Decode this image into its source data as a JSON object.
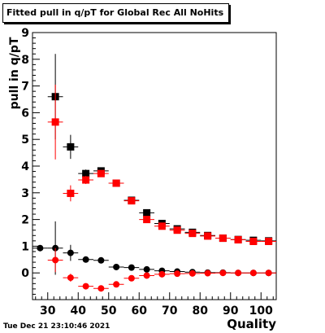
{
  "title": "Fitted pull in q/pT for Global Rec All NoHits",
  "timestamp": "Tue Dec 21 23:10:46 2021",
  "chart_data": {
    "type": "scatter",
    "title": "Fitted pull in q/pT for Global Rec All NoHits",
    "xlabel": "Quality",
    "ylabel": "pull in q/pT",
    "xlim": [
      25,
      105
    ],
    "ylim": [
      -1,
      9
    ],
    "xticks": [
      30,
      40,
      50,
      60,
      70,
      80,
      90,
      100
    ],
    "yticks": [
      0,
      1,
      2,
      3,
      4,
      5,
      6,
      7,
      8,
      9
    ],
    "grid": false,
    "series": [
      {
        "color": "#000000",
        "marker": "square",
        "points": [
          {
            "x": 32.5,
            "y": 6.6,
            "yerr": 1.6,
            "xerr": 2.5
          },
          {
            "x": 37.5,
            "y": 4.72,
            "yerr": 0.45,
            "xerr": 2.5
          },
          {
            "x": 42.5,
            "y": 3.72,
            "yerr": 0.15,
            "xerr": 2.5
          },
          {
            "x": 47.5,
            "y": 3.82,
            "yerr": 0.12,
            "xerr": 2.5
          },
          {
            "x": 52.5,
            "y": 3.36,
            "yerr": 0.06,
            "xerr": 2.5
          },
          {
            "x": 57.5,
            "y": 2.72,
            "yerr": 0.05,
            "xerr": 2.5
          },
          {
            "x": 62.5,
            "y": 2.25,
            "yerr": 0.05,
            "xerr": 2.5
          },
          {
            "x": 67.5,
            "y": 1.85,
            "yerr": 0.04,
            "xerr": 2.5
          },
          {
            "x": 72.5,
            "y": 1.65,
            "yerr": 0.04,
            "xerr": 2.5
          },
          {
            "x": 77.5,
            "y": 1.52,
            "yerr": 0.03,
            "xerr": 2.5
          },
          {
            "x": 82.5,
            "y": 1.4,
            "yerr": 0.03,
            "xerr": 2.5
          },
          {
            "x": 87.5,
            "y": 1.3,
            "yerr": 0.03,
            "xerr": 2.5
          },
          {
            "x": 92.5,
            "y": 1.25,
            "yerr": 0.03,
            "xerr": 2.5
          },
          {
            "x": 97.5,
            "y": 1.22,
            "yerr": 0.03,
            "xerr": 2.5
          },
          {
            "x": 102.5,
            "y": 1.2,
            "yerr": 0.03,
            "xerr": 2.5
          }
        ]
      },
      {
        "color": "#ff0000",
        "marker": "square",
        "points": [
          {
            "x": 32.5,
            "y": 5.65,
            "yerr": 1.4,
            "xerr": 2.5
          },
          {
            "x": 37.5,
            "y": 2.98,
            "yerr": 0.3,
            "xerr": 2.5
          },
          {
            "x": 42.5,
            "y": 3.48,
            "yerr": 0.15,
            "xerr": 2.5
          },
          {
            "x": 47.5,
            "y": 3.72,
            "yerr": 0.1,
            "xerr": 2.5
          },
          {
            "x": 52.5,
            "y": 3.36,
            "yerr": 0.06,
            "xerr": 2.5
          },
          {
            "x": 57.5,
            "y": 2.7,
            "yerr": 0.05,
            "xerr": 2.5
          },
          {
            "x": 62.5,
            "y": 2.0,
            "yerr": 0.05,
            "xerr": 2.5
          },
          {
            "x": 67.5,
            "y": 1.75,
            "yerr": 0.04,
            "xerr": 2.5
          },
          {
            "x": 72.5,
            "y": 1.6,
            "yerr": 0.04,
            "xerr": 2.5
          },
          {
            "x": 77.5,
            "y": 1.48,
            "yerr": 0.03,
            "xerr": 2.5
          },
          {
            "x": 82.5,
            "y": 1.38,
            "yerr": 0.03,
            "xerr": 2.5
          },
          {
            "x": 87.5,
            "y": 1.3,
            "yerr": 0.03,
            "xerr": 2.5
          },
          {
            "x": 92.5,
            "y": 1.24,
            "yerr": 0.03,
            "xerr": 2.5
          },
          {
            "x": 97.5,
            "y": 1.18,
            "yerr": 0.03,
            "xerr": 2.5
          },
          {
            "x": 102.5,
            "y": 1.18,
            "yerr": 0.03,
            "xerr": 2.5
          }
        ]
      },
      {
        "color": "#000000",
        "marker": "circle",
        "points": [
          {
            "x": 27.5,
            "y": 0.93,
            "yerr": 0.05,
            "xerr": 2.5
          },
          {
            "x": 32.5,
            "y": 0.93,
            "yerr": 1.0,
            "xerr": 2.5
          },
          {
            "x": 37.5,
            "y": 0.75,
            "yerr": 0.3,
            "xerr": 2.5
          },
          {
            "x": 42.5,
            "y": 0.5,
            "yerr": 0.08,
            "xerr": 2.5
          },
          {
            "x": 47.5,
            "y": 0.47,
            "yerr": 0.05,
            "xerr": 2.5
          },
          {
            "x": 52.5,
            "y": 0.22,
            "yerr": 0.04,
            "xerr": 2.5
          },
          {
            "x": 57.5,
            "y": 0.2,
            "yerr": 0.03,
            "xerr": 2.5
          },
          {
            "x": 62.5,
            "y": 0.13,
            "yerr": 0.03,
            "xerr": 2.5
          },
          {
            "x": 67.5,
            "y": 0.08,
            "yerr": 0.02,
            "xerr": 2.5
          },
          {
            "x": 72.5,
            "y": 0.05,
            "yerr": 0.02,
            "xerr": 2.5
          },
          {
            "x": 77.5,
            "y": 0.03,
            "yerr": 0.02,
            "xerr": 2.5
          },
          {
            "x": 82.5,
            "y": 0.01,
            "yerr": 0.02,
            "xerr": 2.5
          },
          {
            "x": 87.5,
            "y": 0.01,
            "yerr": 0.02,
            "xerr": 2.5
          },
          {
            "x": 92.5,
            "y": 0.0,
            "yerr": 0.02,
            "xerr": 2.5
          },
          {
            "x": 97.5,
            "y": 0.0,
            "yerr": 0.02,
            "xerr": 2.5
          },
          {
            "x": 102.5,
            "y": 0.0,
            "yerr": 0.02,
            "xerr": 2.5
          }
        ]
      },
      {
        "color": "#ff0000",
        "marker": "circle",
        "points": [
          {
            "x": 32.5,
            "y": 0.48,
            "yerr": 0.45,
            "xerr": 2.5
          },
          {
            "x": 37.5,
            "y": -0.18,
            "yerr": 0.15,
            "xerr": 2.5
          },
          {
            "x": 42.5,
            "y": -0.5,
            "yerr": 0.06,
            "xerr": 2.5
          },
          {
            "x": 47.5,
            "y": -0.58,
            "yerr": 0.05,
            "xerr": 2.5
          },
          {
            "x": 52.5,
            "y": -0.43,
            "yerr": 0.04,
            "xerr": 2.5
          },
          {
            "x": 57.5,
            "y": -0.2,
            "yerr": 0.03,
            "xerr": 2.5
          },
          {
            "x": 62.5,
            "y": -0.1,
            "yerr": 0.03,
            "xerr": 2.5
          },
          {
            "x": 67.5,
            "y": -0.05,
            "yerr": 0.02,
            "xerr": 2.5
          },
          {
            "x": 72.5,
            "y": -0.03,
            "yerr": 0.02,
            "xerr": 2.5
          },
          {
            "x": 77.5,
            "y": -0.02,
            "yerr": 0.02,
            "xerr": 2.5
          },
          {
            "x": 82.5,
            "y": -0.01,
            "yerr": 0.02,
            "xerr": 2.5
          },
          {
            "x": 87.5,
            "y": 0.0,
            "yerr": 0.02,
            "xerr": 2.5
          },
          {
            "x": 92.5,
            "y": 0.0,
            "yerr": 0.02,
            "xerr": 2.5
          },
          {
            "x": 97.5,
            "y": 0.0,
            "yerr": 0.02,
            "xerr": 2.5
          },
          {
            "x": 102.5,
            "y": 0.0,
            "yerr": 0.02,
            "xerr": 2.5
          }
        ]
      }
    ]
  }
}
